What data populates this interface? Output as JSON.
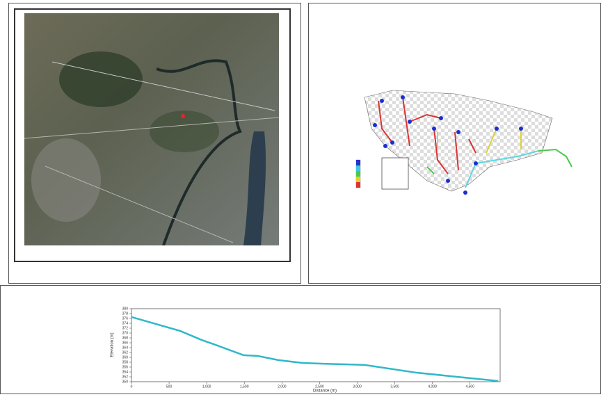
{
  "chart_data": {
    "type": "line",
    "x_label": "Distance (m)",
    "y_label": "Elevation (m)",
    "x": [
      0,
      644,
      938,
      1122,
      1490,
      1674,
      1950,
      2272,
      2548,
      3100,
      3790,
      4875
    ],
    "series": [
      {
        "color": "#2fb8c9",
        "values": [
          376.6,
          370.9,
          367.1,
          365.1,
          360.9,
          360.6,
          358.9,
          357.7,
          357.4,
          356.9,
          353.7,
          350.3
        ]
      }
    ],
    "xlim": [
      0,
      4900
    ],
    "ylim": [
      350,
      380
    ],
    "xticks": [
      0,
      500,
      {
        "value": 1000,
        "label": "1,000"
      },
      {
        "value": 1500,
        "label": "1,500"
      },
      {
        "value": 2000,
        "label": "2,000"
      },
      {
        "value": 2500,
        "label": "2,500"
      },
      {
        "value": 3000,
        "label": "3,000"
      },
      {
        "value": 3500,
        "label": "3,500"
      },
      {
        "value": 4000,
        "label": "4,000"
      },
      {
        "value": 4500,
        "label": "4,500"
      }
    ],
    "yticks": [
      350,
      352,
      354,
      356,
      358,
      360,
      362,
      364,
      366,
      368,
      370,
      372,
      374,
      376,
      378,
      380
    ],
    "grid": false
  }
}
